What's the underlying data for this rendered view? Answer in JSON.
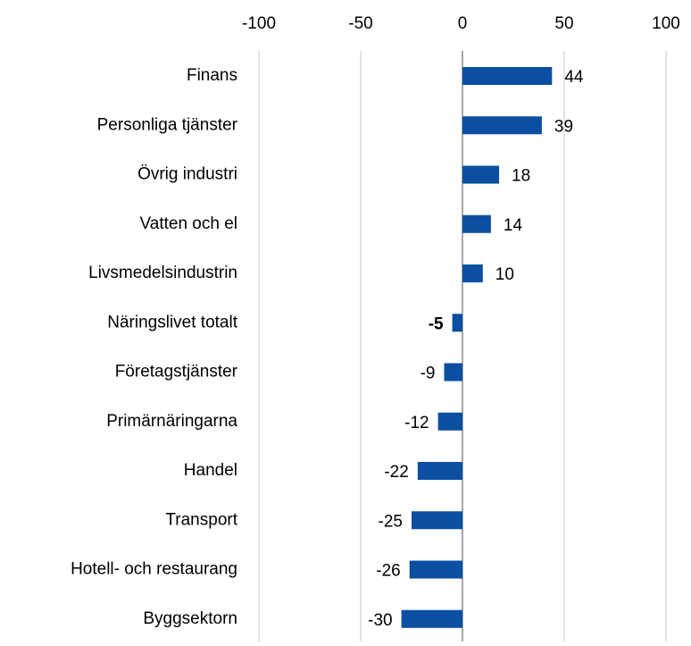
{
  "chart_data": {
    "type": "barh",
    "categories": [
      "Finans",
      "Personliga tjänster",
      "Övrig industri",
      "Vatten och el",
      "Livsmedelsindustrin",
      "Näringslivet totalt",
      "Företagstjänster",
      "Primärnäringarna",
      "Handel",
      "Transport",
      "Hotell- och restaurang",
      "Byggsektorn"
    ],
    "values": [
      44,
      39,
      18,
      14,
      10,
      -5,
      -9,
      -12,
      -22,
      -25,
      -26,
      -30
    ],
    "color": "#0b4ea2",
    "xlim": [
      -100,
      100
    ],
    "xticks": [
      -100,
      -50,
      0,
      50,
      100
    ],
    "grid": true
  }
}
